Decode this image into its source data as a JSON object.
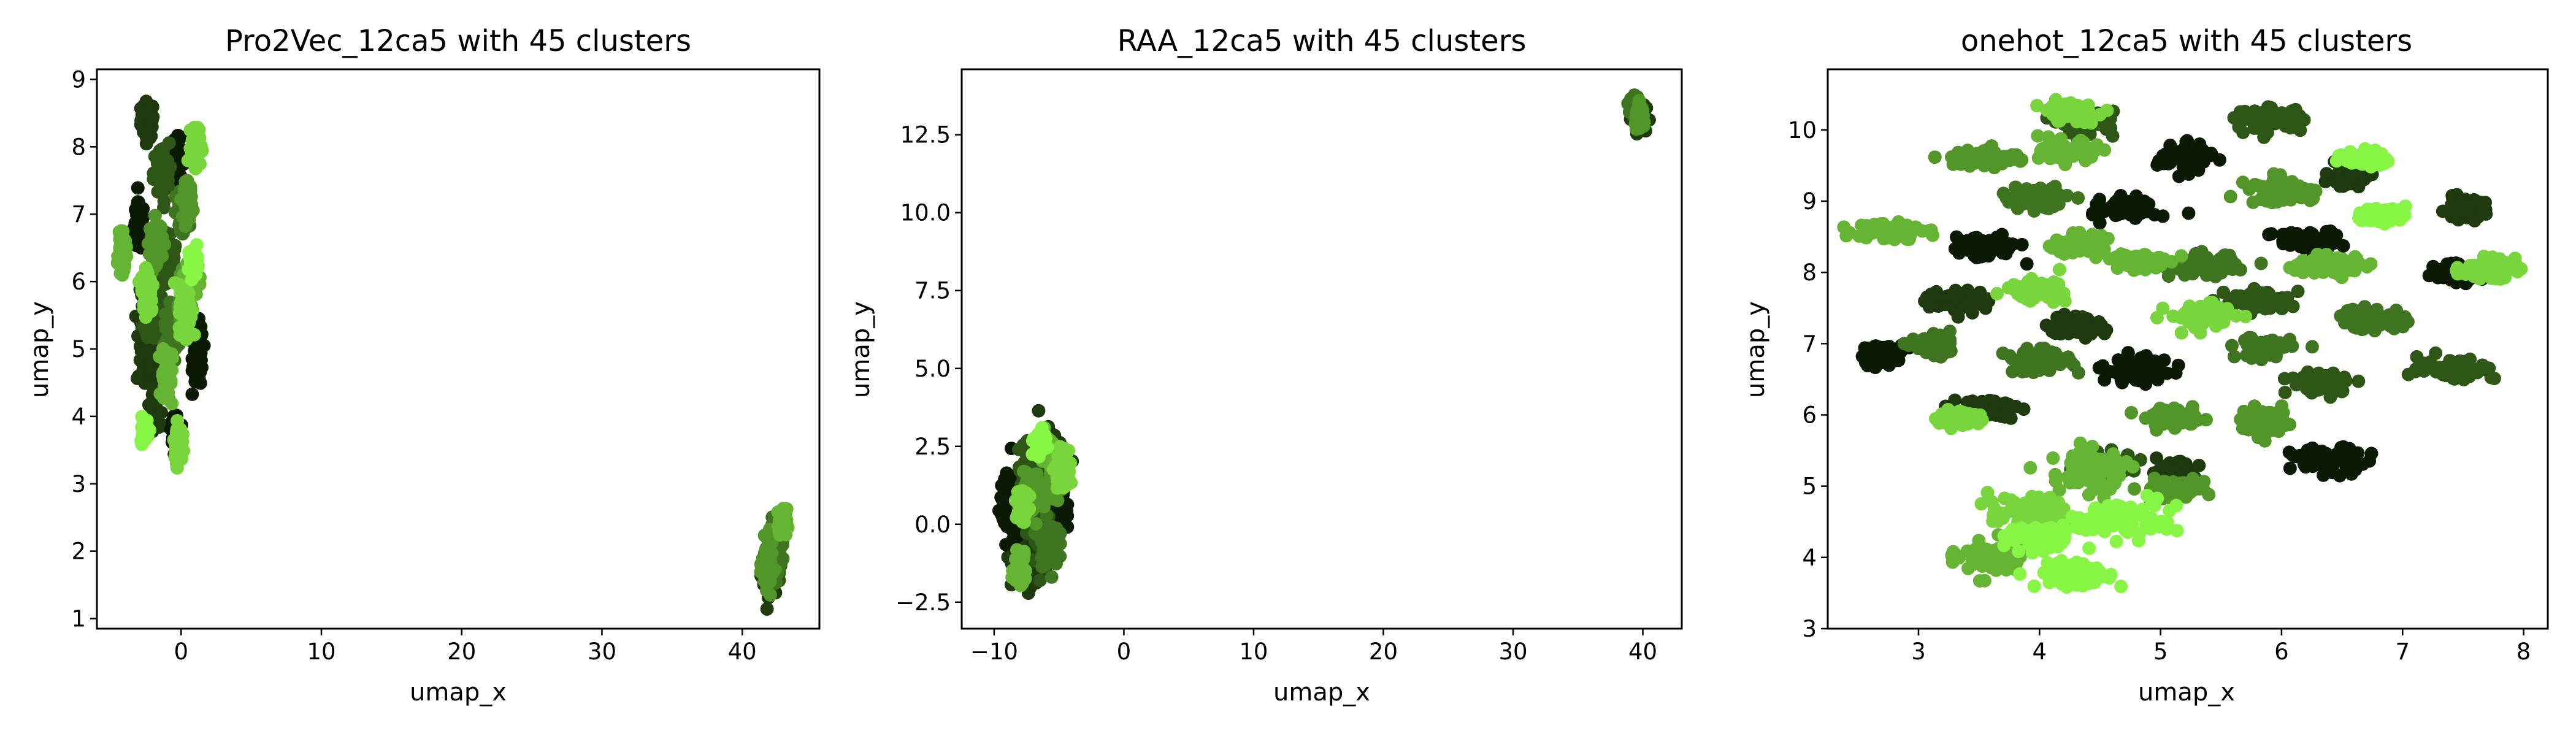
{
  "chart_data": [
    {
      "type": "scatter",
      "title": "Pro2Vec_12ca5 with 45 clusters",
      "xlabel": "umap_x",
      "ylabel": "umap_y",
      "xlim": [
        -6.0,
        45.5
      ],
      "ylim": [
        0.85,
        9.15
      ],
      "xticks": [
        0,
        10,
        20,
        30,
        40
      ],
      "yticks": [
        1,
        2,
        3,
        4,
        5,
        6,
        7,
        8,
        9
      ],
      "legend": "none",
      "grid": false,
      "palette": [
        "#0b1a05",
        "#1e3a0e",
        "#2e5617",
        "#3f7520",
        "#52962a",
        "#66b433",
        "#78d63c",
        "#87f544"
      ],
      "series": [
        {
          "name": "",
          "color": "#1e3a0e",
          "blobs": [
            [
              -2.4,
              8.4,
              0.5,
              0.3
            ],
            [
              -2.6,
              5.1,
              0.6,
              0.8
            ],
            [
              -1.8,
              4.4,
              0.5,
              0.6
            ],
            [
              42.0,
              1.6,
              0.5,
              0.3
            ]
          ]
        },
        {
          "name": "",
          "color": "#0b1a05",
          "blobs": [
            [
              -0.3,
              7.8,
              0.6,
              0.35
            ],
            [
              -3.0,
              6.8,
              0.4,
              0.4
            ],
            [
              1.2,
              4.9,
              0.4,
              0.5
            ],
            [
              -0.4,
              3.8,
              0.3,
              0.2
            ]
          ]
        },
        {
          "name": "",
          "color": "#2e5617",
          "blobs": [
            [
              -1.4,
              7.6,
              0.6,
              0.5
            ],
            [
              -1.0,
              6.3,
              0.8,
              0.5
            ],
            [
              -2.0,
              5.6,
              0.6,
              0.5
            ],
            [
              42.3,
              1.9,
              0.5,
              0.4
            ]
          ]
        },
        {
          "name": "",
          "color": "#3f7520",
          "blobs": [
            [
              0.1,
              7.0,
              0.5,
              0.4
            ],
            [
              -0.6,
              5.3,
              0.6,
              0.4
            ],
            [
              42.5,
              2.1,
              0.5,
              0.4
            ]
          ]
        },
        {
          "name": "",
          "color": "#52962a",
          "blobs": [
            [
              0.5,
              7.2,
              0.3,
              0.3
            ],
            [
              -1.8,
              6.6,
              0.5,
              0.35
            ],
            [
              0.2,
              5.7,
              0.5,
              0.4
            ],
            [
              41.8,
              1.8,
              0.4,
              0.4
            ]
          ]
        },
        {
          "name": "",
          "color": "#66b433",
          "blobs": [
            [
              -4.2,
              6.4,
              0.3,
              0.3
            ],
            [
              -1.0,
              4.6,
              0.4,
              0.5
            ],
            [
              0.7,
              6.1,
              0.5,
              0.3
            ],
            [
              42.9,
              2.4,
              0.3,
              0.25
            ]
          ]
        },
        {
          "name": "",
          "color": "#78d63c",
          "blobs": [
            [
              1.1,
              8.0,
              0.4,
              0.3
            ],
            [
              -2.4,
              5.9,
              0.5,
              0.4
            ],
            [
              0.3,
              5.6,
              0.5,
              0.4
            ],
            [
              -0.2,
              3.6,
              0.3,
              0.3
            ]
          ]
        },
        {
          "name": "",
          "color": "#87f544",
          "blobs": [
            [
              -2.6,
              3.8,
              0.3,
              0.2
            ],
            [
              0.9,
              6.3,
              0.3,
              0.2
            ]
          ]
        }
      ]
    },
    {
      "type": "scatter",
      "title": "RAA_12ca5 with 45 clusters",
      "xlabel": "umap_x",
      "ylabel": "umap_y",
      "xlim": [
        -12.5,
        43.0
      ],
      "ylim": [
        -3.35,
        14.6
      ],
      "xticks": [
        -10,
        0,
        10,
        20,
        30,
        40
      ],
      "yticks": [
        -2.5,
        0.0,
        2.5,
        5.0,
        7.5,
        10.0,
        12.5
      ],
      "legend": "none",
      "grid": false,
      "palette": [
        "#0b1a05",
        "#1e3a0e",
        "#2e5617",
        "#3f7520",
        "#52962a",
        "#66b433",
        "#78d63c",
        "#87f544"
      ],
      "series": [
        {
          "name": "",
          "color": "#1e3a0e",
          "blobs": [
            [
              -7.5,
              -1.2,
              1.3,
              1.0
            ],
            [
              -5.5,
              2.2,
              1.2,
              0.9
            ],
            [
              39.6,
              13.2,
              0.6,
              0.5
            ]
          ]
        },
        {
          "name": "",
          "color": "#0b1a05",
          "blobs": [
            [
              -8.8,
              0.5,
              0.8,
              1.2
            ],
            [
              -5.0,
              0.6,
              0.6,
              0.9
            ]
          ]
        },
        {
          "name": "",
          "color": "#2e5617",
          "blobs": [
            [
              -6.5,
              0.0,
              1.0,
              1.3
            ],
            [
              -7.2,
              1.9,
              1.0,
              0.8
            ]
          ]
        },
        {
          "name": "",
          "color": "#3f7520",
          "blobs": [
            [
              -5.8,
              -0.6,
              0.8,
              0.8
            ],
            [
              39.4,
              13.4,
              0.5,
              0.4
            ]
          ]
        },
        {
          "name": "",
          "color": "#52962a",
          "blobs": [
            [
              -7.0,
              1.0,
              0.8,
              0.7
            ],
            [
              -5.2,
              1.5,
              0.6,
              0.6
            ],
            [
              39.8,
              13.0,
              0.4,
              0.4
            ]
          ]
        },
        {
          "name": "",
          "color": "#66b433",
          "blobs": [
            [
              -6.0,
              2.4,
              0.8,
              0.6
            ],
            [
              -8.0,
              -1.4,
              0.5,
              0.6
            ]
          ]
        },
        {
          "name": "",
          "color": "#78d63c",
          "blobs": [
            [
              -4.8,
              1.8,
              0.5,
              0.6
            ],
            [
              -7.8,
              0.6,
              0.5,
              0.5
            ]
          ]
        },
        {
          "name": "",
          "color": "#87f544",
          "blobs": [
            [
              -6.5,
              2.6,
              0.5,
              0.4
            ]
          ]
        }
      ]
    },
    {
      "type": "scatter",
      "title": "onehot_12ca5 with 45 clusters",
      "xlabel": "umap_x",
      "ylabel": "umap_y",
      "xlim": [
        2.25,
        8.2
      ],
      "ylim": [
        3.0,
        10.85
      ],
      "xticks": [
        3,
        4,
        5,
        6,
        7,
        8
      ],
      "yticks": [
        3,
        4,
        5,
        6,
        7,
        8,
        9,
        10
      ],
      "legend": "none",
      "grid": false,
      "palette": [
        "#0b1a05",
        "#1e3a0e",
        "#2e5617",
        "#3f7520",
        "#52962a",
        "#66b433",
        "#78d63c",
        "#87f544"
      ],
      "series": [
        {
          "name": "",
          "color": "#0b1a05",
          "blobs": [
            [
              3.55,
              8.35,
              0.3,
              0.17
            ],
            [
              4.75,
              8.9,
              0.25,
              0.17
            ],
            [
              5.2,
              9.6,
              0.25,
              0.2
            ],
            [
              6.2,
              8.45,
              0.3,
              0.15
            ],
            [
              4.8,
              6.65,
              0.3,
              0.2
            ],
            [
              6.4,
              5.35,
              0.35,
              0.2
            ],
            [
              7.45,
              8.0,
              0.2,
              0.15
            ],
            [
              2.7,
              6.85,
              0.2,
              0.15
            ]
          ]
        },
        {
          "name": "",
          "color": "#1e3a0e",
          "blobs": [
            [
              4.3,
              7.25,
              0.25,
              0.15
            ],
            [
              3.3,
              7.6,
              0.3,
              0.17
            ],
            [
              3.55,
              6.1,
              0.3,
              0.15
            ],
            [
              6.55,
              9.35,
              0.2,
              0.15
            ],
            [
              5.1,
              5.2,
              0.2,
              0.15
            ],
            [
              7.5,
              8.9,
              0.2,
              0.15
            ]
          ]
        },
        {
          "name": "",
          "color": "#2e5617",
          "blobs": [
            [
              5.9,
              10.15,
              0.3,
              0.17
            ],
            [
              6.35,
              6.45,
              0.3,
              0.17
            ],
            [
              7.45,
              6.65,
              0.35,
              0.17
            ],
            [
              4.55,
              5.3,
              0.3,
              0.17
            ],
            [
              5.8,
              7.6,
              0.3,
              0.17
            ],
            [
              4.4,
              10.1,
              0.25,
              0.17
            ]
          ]
        },
        {
          "name": "",
          "color": "#3f7520",
          "blobs": [
            [
              3.95,
              9.05,
              0.3,
              0.17
            ],
            [
              5.35,
              8.1,
              0.3,
              0.17
            ],
            [
              3.15,
              6.95,
              0.2,
              0.15
            ],
            [
              5.85,
              6.95,
              0.25,
              0.17
            ],
            [
              4.0,
              6.75,
              0.3,
              0.17
            ],
            [
              6.75,
              7.35,
              0.3,
              0.17
            ]
          ]
        },
        {
          "name": "",
          "color": "#52962a",
          "blobs": [
            [
              3.55,
              9.6,
              0.3,
              0.15
            ],
            [
              5.1,
              5.95,
              0.25,
              0.15
            ],
            [
              5.9,
              5.9,
              0.25,
              0.2
            ],
            [
              6.0,
              9.15,
              0.3,
              0.2
            ],
            [
              5.1,
              4.95,
              0.3,
              0.15
            ]
          ]
        },
        {
          "name": "",
          "color": "#66b433",
          "blobs": [
            [
              2.75,
              8.6,
              0.3,
              0.15
            ],
            [
              4.8,
              8.15,
              0.25,
              0.15
            ],
            [
              6.4,
              8.1,
              0.35,
              0.15
            ],
            [
              4.25,
              9.7,
              0.25,
              0.15
            ],
            [
              4.3,
              8.4,
              0.25,
              0.15
            ],
            [
              3.6,
              4.0,
              0.3,
              0.3
            ],
            [
              4.4,
              5.2,
              0.35,
              0.35
            ]
          ]
        },
        {
          "name": "",
          "color": "#78d63c",
          "blobs": [
            [
              3.95,
              7.75,
              0.25,
              0.15
            ],
            [
              5.35,
              7.4,
              0.3,
              0.2
            ],
            [
              4.25,
              10.25,
              0.25,
              0.15
            ],
            [
              3.9,
              4.6,
              0.35,
              0.3
            ],
            [
              7.7,
              8.05,
              0.25,
              0.15
            ],
            [
              3.35,
              5.95,
              0.2,
              0.12
            ]
          ]
        },
        {
          "name": "",
          "color": "#87f544",
          "blobs": [
            [
              6.85,
              8.8,
              0.2,
              0.12
            ],
            [
              6.7,
              9.6,
              0.2,
              0.12
            ],
            [
              4.3,
              3.75,
              0.35,
              0.2
            ],
            [
              4.7,
              4.55,
              0.5,
              0.3
            ],
            [
              4.0,
              4.25,
              0.3,
              0.2
            ]
          ]
        }
      ]
    }
  ]
}
